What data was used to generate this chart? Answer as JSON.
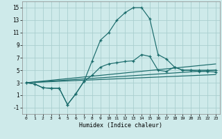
{
  "xlabel": "Humidex (Indice chaleur)",
  "bg_color": "#ceeaea",
  "grid_color": "#aacfcf",
  "line_color": "#1a6b6b",
  "xlim": [
    -0.5,
    23.5
  ],
  "ylim": [
    -2,
    16
  ],
  "xticks": [
    0,
    1,
    2,
    3,
    4,
    5,
    6,
    7,
    8,
    9,
    10,
    11,
    12,
    13,
    14,
    15,
    16,
    17,
    18,
    19,
    20,
    21,
    22,
    23
  ],
  "yticks": [
    -1,
    1,
    3,
    5,
    7,
    9,
    11,
    13,
    15
  ],
  "main_line_x": [
    0,
    1,
    2,
    3,
    4,
    5,
    6,
    7,
    8,
    9,
    10,
    11,
    12,
    13,
    14,
    15,
    16,
    17,
    18,
    19,
    20,
    21,
    22,
    23
  ],
  "main_line_y": [
    3.0,
    2.8,
    2.2,
    2.1,
    2.1,
    -0.5,
    1.2,
    3.2,
    6.5,
    9.8,
    11.0,
    13.0,
    14.2,
    15.0,
    15.0,
    13.2,
    7.5,
    6.8,
    5.5,
    5.0,
    5.0,
    5.0,
    5.0,
    5.0
  ],
  "line2_x": [
    0,
    1,
    2,
    3,
    4,
    5,
    6,
    7,
    8,
    9,
    10,
    11,
    12,
    13,
    14,
    15,
    16,
    17,
    18,
    19,
    20,
    21,
    22,
    23
  ],
  "line2_y": [
    3.0,
    2.8,
    2.2,
    2.1,
    2.1,
    -0.5,
    1.2,
    3.2,
    4.2,
    5.5,
    6.0,
    6.2,
    6.4,
    6.5,
    7.5,
    7.2,
    5.0,
    4.8,
    5.5,
    5.0,
    5.0,
    4.8,
    4.8,
    4.7
  ],
  "line3_x": [
    0,
    23
  ],
  "line3_y": [
    3.0,
    6.0
  ],
  "line4_x": [
    0,
    23
  ],
  "line4_y": [
    3.0,
    5.0
  ],
  "line5_x": [
    0,
    23
  ],
  "line5_y": [
    3.0,
    4.3
  ]
}
